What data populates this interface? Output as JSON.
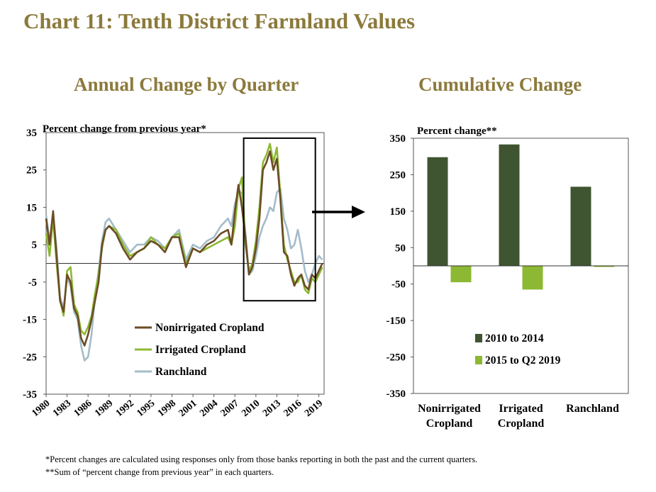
{
  "title": "Chart 11: Tenth District Farmland Values",
  "colors": {
    "title": "#8c7a3c",
    "nonirrigated": "#6b4c25",
    "irrigated": "#8db833",
    "ranchland": "#a3bccb",
    "bar_2010_2014": "#3f5430",
    "bar_2015_2019": "#8db833"
  },
  "footnotes": [
    "*Percent changes are calculated using responses only from those banks reporting in both the past and the current quarters.",
    "**Sum of “percent change from previous year” in each quarters."
  ],
  "chart_data": [
    {
      "type": "line",
      "title": "Annual Change by Quarter",
      "ylabel": "Percent change from previous year*",
      "ylim": [
        -35,
        35
      ],
      "yticks": [
        35,
        25,
        15,
        5,
        -5,
        -15,
        -25,
        -35
      ],
      "xlim": [
        1980,
        2019.75
      ],
      "xticks": [
        "1980",
        "1983",
        "1986",
        "1989",
        "1992",
        "1995",
        "1998",
        "2001",
        "2004",
        "2007",
        "2010",
        "2013",
        "2016",
        "2019"
      ],
      "highlight": {
        "x": [
          2008.25,
          2018.5
        ],
        "y": [
          -10,
          33.5
        ]
      },
      "legend": "center-bottom",
      "series": [
        {
          "name": "Nonirrigated Cropland",
          "x": [
            1980,
            1980.5,
            1981,
            1981.5,
            1982,
            1982.5,
            1983,
            1983.5,
            1984,
            1984.5,
            1985,
            1985.5,
            1986,
            1986.5,
            1987,
            1987.5,
            1988,
            1988.5,
            1989,
            1990,
            1991,
            1992,
            1993,
            1994,
            1995,
            1996,
            1997,
            1998,
            1999,
            2000,
            2001,
            2002,
            2003,
            2004,
            2005,
            2006,
            2006.5,
            2007,
            2007.5,
            2008,
            2008.5,
            2009,
            2009.5,
            2010,
            2010.5,
            2011,
            2011.5,
            2012,
            2012.5,
            2013,
            2013.5,
            2014,
            2014.5,
            2015,
            2015.5,
            2016,
            2016.5,
            2017,
            2017.5,
            2018,
            2018.5,
            2019,
            2019.5
          ],
          "values": [
            12,
            5,
            14,
            2,
            -10,
            -13,
            -3,
            -5,
            -12,
            -14,
            -20,
            -22,
            -19,
            -15,
            -10,
            -5,
            5,
            9,
            10,
            8,
            4,
            1,
            3,
            4,
            6,
            5,
            3,
            7,
            7,
            -1,
            4,
            3,
            5,
            6,
            8,
            9,
            5,
            14,
            21,
            15,
            7,
            -3,
            -1,
            4,
            12,
            25,
            27,
            30,
            25,
            28,
            17,
            3,
            2,
            -3,
            -6,
            -4,
            -3,
            -6,
            -7,
            -3,
            -4,
            -2,
            0
          ]
        },
        {
          "name": "Irrigated Cropland",
          "x": [
            1980,
            1980.5,
            1981,
            1981.5,
            1982,
            1982.5,
            1983,
            1983.5,
            1984,
            1984.5,
            1985,
            1985.5,
            1986,
            1986.5,
            1987,
            1987.5,
            1988,
            1988.5,
            1989,
            1990,
            1991,
            1992,
            1993,
            1994,
            1995,
            1996,
            1997,
            1998,
            1999,
            2000,
            2001,
            2002,
            2003,
            2004,
            2005,
            2006,
            2006.5,
            2007,
            2007.5,
            2008,
            2008.5,
            2009,
            2009.5,
            2010,
            2010.5,
            2011,
            2011.5,
            2012,
            2012.5,
            2013,
            2013.5,
            2014,
            2014.5,
            2015,
            2015.5,
            2016,
            2016.5,
            2017,
            2017.5,
            2018,
            2018.5,
            2019,
            2019.5
          ],
          "values": [
            8,
            2,
            12,
            0,
            -10,
            -14,
            -2,
            -1,
            -11,
            -13,
            -18,
            -19,
            -17,
            -14,
            -8,
            -3,
            4,
            9,
            10,
            9,
            5,
            2,
            3,
            4,
            7,
            5,
            4,
            7,
            8,
            0,
            4,
            3,
            4,
            5,
            6,
            7,
            5,
            10,
            20,
            23,
            5,
            -2,
            0,
            6,
            15,
            27,
            29,
            32,
            27,
            31,
            18,
            5,
            1,
            -2,
            -5,
            -5,
            -3,
            -7,
            -8,
            -4,
            -5,
            -3,
            -1
          ]
        },
        {
          "name": "Ranchland",
          "x": [
            1980,
            1980.5,
            1981,
            1981.5,
            1982,
            1982.5,
            1983,
            1983.5,
            1984,
            1984.5,
            1985,
            1985.5,
            1986,
            1986.5,
            1987,
            1987.5,
            1988,
            1988.5,
            1989,
            1990,
            1991,
            1992,
            1993,
            1994,
            1995,
            1996,
            1997,
            1998,
            1999,
            2000,
            2001,
            2002,
            2003,
            2004,
            2005,
            2006,
            2006.5,
            2007,
            2007.5,
            2008,
            2008.5,
            2009,
            2009.5,
            2010,
            2010.5,
            2011,
            2011.5,
            2012,
            2012.5,
            2013,
            2013.5,
            2014,
            2014.5,
            2015,
            2015.5,
            2016,
            2016.5,
            2017,
            2017.5,
            2018,
            2018.5,
            2019,
            2019.5
          ],
          "values": [
            13,
            6,
            13,
            4,
            -9,
            -12,
            -4,
            -6,
            -13,
            -15,
            -22,
            -26,
            -25,
            -19,
            -9,
            -2,
            6,
            11,
            12,
            9,
            6,
            3,
            5,
            5,
            7,
            6,
            4,
            7,
            9,
            1,
            5,
            4,
            6,
            7,
            10,
            12,
            10,
            16,
            19,
            19,
            8,
            -3,
            -2,
            2,
            7,
            10,
            12,
            15,
            14,
            19,
            20,
            12,
            9,
            4,
            5,
            9,
            4,
            -2,
            -5,
            -3,
            0,
            2,
            1
          ]
        }
      ]
    },
    {
      "type": "bar",
      "title": "Cumulative Change",
      "ylabel": "Percent change**",
      "ylim": [
        -350,
        350
      ],
      "yticks": [
        350,
        250,
        150,
        50,
        -50,
        -150,
        -250,
        -350
      ],
      "categories": [
        "Nonirrigated Cropland",
        "Irrigated Cropland",
        "Ranchland"
      ],
      "category_lines": [
        [
          "Nonirrigated",
          "Cropland"
        ],
        [
          "Irrigated",
          "Cropland"
        ],
        [
          "Ranchland"
        ]
      ],
      "legend": "center-bottom",
      "series": [
        {
          "name": "2010 to 2014",
          "values": [
            298,
            333,
            217
          ]
        },
        {
          "name": "2015 to Q2 2019",
          "values": [
            -45,
            -65,
            -3
          ]
        }
      ]
    }
  ]
}
